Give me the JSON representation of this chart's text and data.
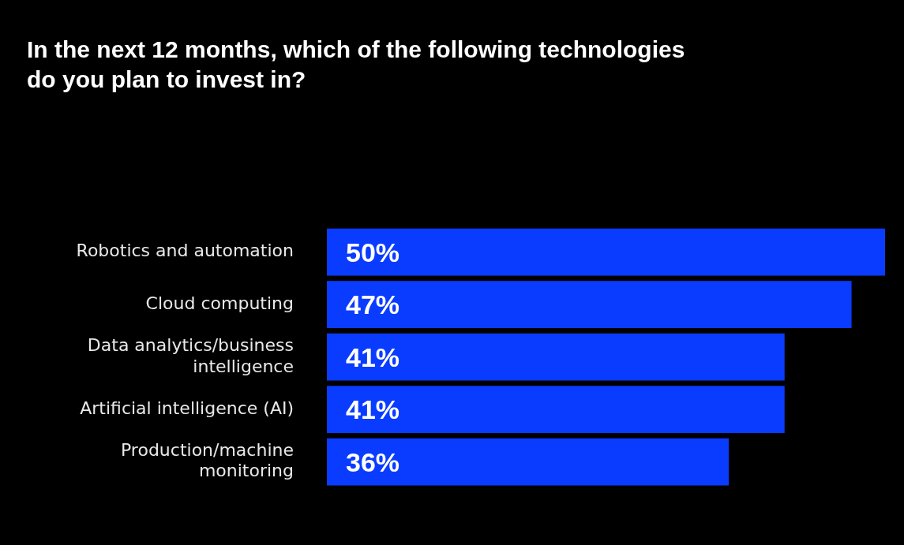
{
  "chart_data": {
    "type": "bar",
    "orientation": "horizontal",
    "title": "In the next 12 months, which of the following technologies do you plan to invest in?",
    "categories": [
      "Robotics and automation",
      "Cloud computing",
      "Data analytics/business intelligence",
      "Artificial intelligence (AI)",
      "Production/machine monitoring"
    ],
    "values": [
      50,
      47,
      41,
      41,
      36
    ],
    "value_labels": [
      "50%",
      "47%",
      "41%",
      "41%",
      "36%"
    ],
    "color": "#0a3cff",
    "xlim": [
      0,
      50
    ],
    "tick_labels": "y"
  }
}
